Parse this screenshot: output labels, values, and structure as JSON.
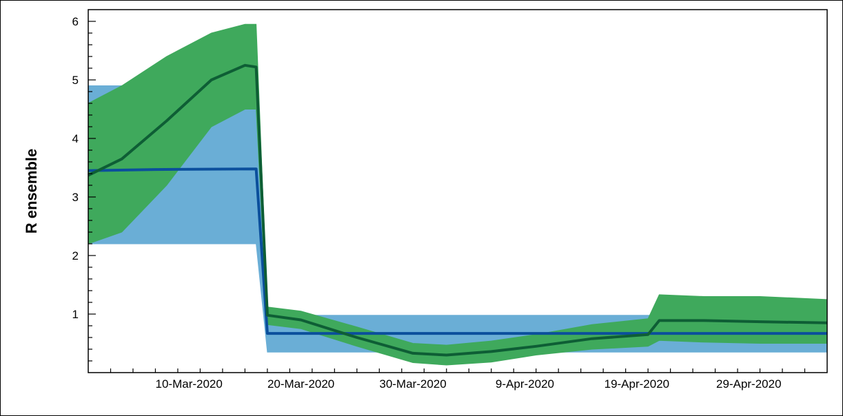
{
  "chart_data": {
    "type": "line",
    "title": "",
    "xlabel": "",
    "ylabel": "R ensemble",
    "x_start": "2020-03-01",
    "x_end": "2020-05-06",
    "ylim": [
      0,
      6.2
    ],
    "yticks": [
      1,
      2,
      3,
      4,
      5,
      6
    ],
    "ytick_labels": [
      "1",
      "2",
      "3",
      "4",
      "5",
      "6"
    ],
    "xticks": [
      "2020-03-10",
      "2020-03-20",
      "2020-03-30",
      "2020-04-09",
      "2020-04-19",
      "2020-04-29"
    ],
    "xtick_labels": [
      "10-Mar-2020",
      "20-Mar-2020",
      "30-Mar-2020",
      "9-Apr-2020",
      "19-Apr-2020",
      "29-Apr-2020"
    ],
    "grid": false,
    "legend": "none",
    "series": [
      {
        "color": "#0b4f9c",
        "band_color": "#6aaed6",
        "x": [
          "2020-03-01",
          "2020-03-07",
          "2020-03-16",
          "2020-03-17",
          "2020-05-06"
        ],
        "values": [
          3.45,
          3.47,
          3.48,
          0.67,
          0.67
        ],
        "band_upper": [
          4.9,
          4.9,
          4.7,
          0.98,
          0.98
        ],
        "band_lower": [
          2.2,
          2.2,
          2.2,
          0.35,
          0.35
        ]
      },
      {
        "color": "#0e5e35",
        "band_color": "#3fa95c",
        "x": [
          "2020-03-01",
          "2020-03-04",
          "2020-03-08",
          "2020-03-12",
          "2020-03-15",
          "2020-03-16",
          "2020-03-17",
          "2020-03-20",
          "2020-03-25",
          "2020-03-30",
          "2020-04-02",
          "2020-04-06",
          "2020-04-10",
          "2020-04-15",
          "2020-04-20",
          "2020-04-21",
          "2020-04-25",
          "2020-04-30",
          "2020-05-06"
        ],
        "values": [
          3.37,
          3.65,
          4.3,
          5.0,
          5.25,
          5.22,
          0.98,
          0.9,
          0.6,
          0.33,
          0.3,
          0.36,
          0.45,
          0.58,
          0.65,
          0.89,
          0.89,
          0.87,
          0.85
        ],
        "band_upper": [
          4.6,
          4.9,
          5.4,
          5.8,
          5.95,
          5.95,
          1.12,
          1.05,
          0.78,
          0.5,
          0.47,
          0.54,
          0.65,
          0.82,
          0.92,
          1.33,
          1.3,
          1.3,
          1.25
        ],
        "band_lower": [
          2.2,
          2.4,
          3.2,
          4.2,
          4.5,
          4.5,
          0.82,
          0.75,
          0.45,
          0.17,
          0.13,
          0.18,
          0.3,
          0.4,
          0.45,
          0.55,
          0.52,
          0.5,
          0.5
        ]
      }
    ]
  }
}
